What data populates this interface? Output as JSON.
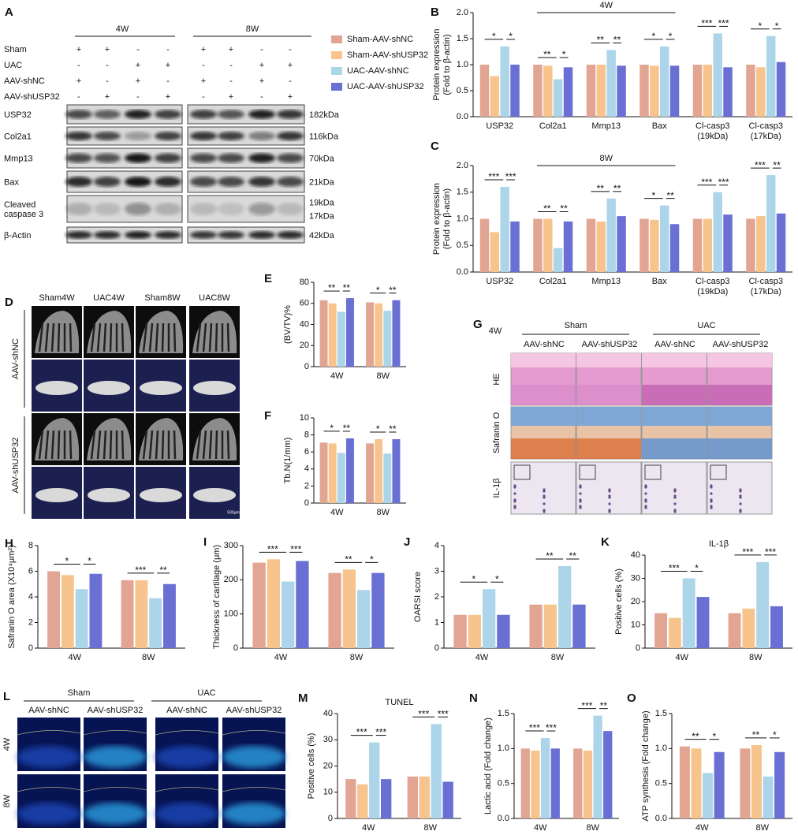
{
  "legend": [
    {
      "name": "Sham-AAV-shNC",
      "color": "#e2a593"
    },
    {
      "name": "Sham-AAV-shUSP32",
      "color": "#f8c48e"
    },
    {
      "name": "UAC-AAV-shNC",
      "color": "#acd5ea"
    },
    {
      "name": "UAC-AAV-shUSP32",
      "color": "#6a6fd4"
    }
  ],
  "blot": {
    "panel": "A",
    "periods": [
      "4W",
      "8W"
    ],
    "conditions": [
      {
        "label": "Sham",
        "marks": [
          "+",
          "+",
          "-",
          "-",
          "+",
          "+",
          "-",
          "-"
        ]
      },
      {
        "label": "UAC",
        "marks": [
          "-",
          "-",
          "+",
          "+",
          "-",
          "-",
          "+",
          "+"
        ]
      },
      {
        "label": "AAV-shNC",
        "marks": [
          "+",
          "-",
          "+",
          "-",
          "+",
          "-",
          "+",
          "-"
        ]
      },
      {
        "label": "AAV-shUSP32",
        "marks": [
          "-",
          "+",
          "-",
          "+",
          "-",
          "+",
          "-",
          "+"
        ]
      }
    ],
    "bands": [
      {
        "label": [
          "USP32"
        ],
        "sizes": [
          "182kDa"
        ]
      },
      {
        "label": [
          "Col2a1"
        ],
        "sizes": [
          "116kDa"
        ]
      },
      {
        "label": [
          "Mmp13"
        ],
        "sizes": [
          "70kDa"
        ]
      },
      {
        "label": [
          "Bax"
        ],
        "sizes": [
          "21kDa"
        ]
      },
      {
        "label": [
          "Cleaved",
          "caspase 3"
        ],
        "sizes": [
          "19kDa",
          "17kDa"
        ]
      },
      {
        "label": [
          "β-Actin"
        ],
        "sizes": [
          "42kDa"
        ]
      }
    ]
  },
  "microct": {
    "panel": "D",
    "columns": [
      "Sham4W",
      "UAC4W",
      "Sham8W",
      "UAC8W"
    ],
    "rows": [
      "AAV-shNC",
      "AAV-shUSP32"
    ],
    "scale": "500μm"
  },
  "histology": {
    "panel": "G",
    "period": "4W",
    "groups": [
      "Sham",
      "UAC"
    ],
    "columns": [
      "AAV-shNC",
      "AAV-shUSP32",
      "AAV-shNC",
      "AAV-shUSP32"
    ],
    "rows": [
      "HE",
      "Safranin O",
      "IL-1β"
    ]
  },
  "fluorescence": {
    "panel": "L",
    "groups": [
      "Sham",
      "UAC"
    ],
    "columns": [
      "AAV-shNC",
      "AAV-shUSP32",
      "AAV-shNC",
      "AAV-shUSP32"
    ],
    "rows": [
      "4W",
      "8W"
    ]
  },
  "chart_data": [
    {
      "type": "bar",
      "panel": "B",
      "header": "4W",
      "ylabel": [
        "Protein expression",
        "(Fold to β-actin)"
      ],
      "categories": [
        [
          "USP32"
        ],
        [
          "Col2a1"
        ],
        [
          "Mmp13"
        ],
        [
          "Bax"
        ],
        [
          "Cl-casp3",
          "(19kDa)"
        ],
        [
          "Cl-casp3",
          "(17kDa)"
        ]
      ],
      "series": [
        {
          "values": [
            1.0,
            1.0,
            1.0,
            1.0,
            1.0,
            1.0
          ]
        },
        {
          "values": [
            0.78,
            0.98,
            1.0,
            0.98,
            1.0,
            0.95
          ]
        },
        {
          "values": [
            1.35,
            0.72,
            1.28,
            1.35,
            1.6,
            1.55
          ]
        },
        {
          "values": [
            1.0,
            0.95,
            0.98,
            0.98,
            0.95,
            1.05
          ]
        }
      ],
      "ylim": [
        0,
        2
      ],
      "yticks": [
        {
          "value": 0,
          "label": "0.0"
        },
        {
          "value": 0.5,
          "label": "0.5"
        },
        {
          "value": 1,
          "label": "1.0"
        },
        {
          "value": 1.5,
          "label": "1.5"
        },
        {
          "value": 2,
          "label": "2.0"
        }
      ],
      "annotations": [
        {
          "text": "*",
          "category": 0,
          "from": 0,
          "to": 2
        },
        {
          "text": "*",
          "category": 0,
          "from": 2,
          "to": 3
        },
        {
          "text": "**",
          "category": 1,
          "from": 0,
          "to": 2
        },
        {
          "text": "*",
          "category": 1,
          "from": 2,
          "to": 3
        },
        {
          "text": "**",
          "category": 2,
          "from": 0,
          "to": 2
        },
        {
          "text": "**",
          "category": 2,
          "from": 2,
          "to": 3
        },
        {
          "text": "*",
          "category": 3,
          "from": 0,
          "to": 2
        },
        {
          "text": "*",
          "category": 3,
          "from": 2,
          "to": 3
        },
        {
          "text": "***",
          "category": 4,
          "from": 0,
          "to": 2
        },
        {
          "text": "***",
          "category": 4,
          "from": 2,
          "to": 3
        },
        {
          "text": "*",
          "category": 5,
          "from": 0,
          "to": 2
        },
        {
          "text": "*",
          "category": 5,
          "from": 2,
          "to": 3
        }
      ]
    },
    {
      "type": "bar",
      "panel": "C",
      "header": "8W",
      "ylabel": [
        "Protein expression",
        "(Fold to β-actin)"
      ],
      "categories": [
        [
          "USP32"
        ],
        [
          "Col2a1"
        ],
        [
          "Mmp13"
        ],
        [
          "Bax"
        ],
        [
          "Cl-casp3",
          "(19kDa)"
        ],
        [
          "Cl-casp3",
          "(17kDa)"
        ]
      ],
      "series": [
        {
          "values": [
            1.0,
            1.0,
            1.0,
            1.0,
            1.0,
            1.0
          ]
        },
        {
          "values": [
            0.75,
            1.0,
            0.95,
            0.98,
            1.0,
            1.05
          ]
        },
        {
          "values": [
            1.6,
            0.45,
            1.38,
            1.25,
            1.5,
            1.82
          ]
        },
        {
          "values": [
            0.95,
            0.95,
            1.05,
            0.9,
            1.08,
            1.1
          ]
        }
      ],
      "ylim": [
        0,
        2
      ],
      "yticks": [
        {
          "value": 0,
          "label": "0.0"
        },
        {
          "value": 0.5,
          "label": "0.5"
        },
        {
          "value": 1,
          "label": "1.0"
        },
        {
          "value": 1.5,
          "label": "1.5"
        },
        {
          "value": 2,
          "label": "2.0"
        }
      ],
      "annotations": [
        {
          "text": "***",
          "category": 0,
          "from": 0,
          "to": 2
        },
        {
          "text": "***",
          "category": 0,
          "from": 2,
          "to": 3
        },
        {
          "text": "**",
          "category": 1,
          "from": 0,
          "to": 2
        },
        {
          "text": "**",
          "category": 1,
          "from": 2,
          "to": 3
        },
        {
          "text": "**",
          "category": 2,
          "from": 0,
          "to": 2
        },
        {
          "text": "**",
          "category": 2,
          "from": 2,
          "to": 3
        },
        {
          "text": "*",
          "category": 3,
          "from": 0,
          "to": 2
        },
        {
          "text": "**",
          "category": 3,
          "from": 2,
          "to": 3
        },
        {
          "text": "***",
          "category": 4,
          "from": 0,
          "to": 2
        },
        {
          "text": "***",
          "category": 4,
          "from": 2,
          "to": 3
        },
        {
          "text": "***",
          "category": 5,
          "from": 0,
          "to": 2
        },
        {
          "text": "**",
          "category": 5,
          "from": 2,
          "to": 3
        }
      ]
    },
    {
      "type": "bar",
      "panel": "E",
      "ylabel": [
        "(BV/TV)%"
      ],
      "categories": [
        [
          "4W"
        ],
        [
          "8W"
        ]
      ],
      "series": [
        {
          "values": [
            63,
            61
          ]
        },
        {
          "values": [
            60,
            60
          ]
        },
        {
          "values": [
            52,
            53
          ]
        },
        {
          "values": [
            65,
            63
          ]
        }
      ],
      "ylim": [
        0,
        80
      ],
      "yticks": [
        0,
        20,
        40,
        60,
        80
      ],
      "annotations": [
        {
          "text": "**",
          "category": 0,
          "from": 0,
          "to": 2
        },
        {
          "text": "**",
          "category": 0,
          "from": 2,
          "to": 3
        },
        {
          "text": "*",
          "category": 1,
          "from": 0,
          "to": 2
        },
        {
          "text": "**",
          "category": 1,
          "from": 2,
          "to": 3
        }
      ]
    },
    {
      "type": "bar",
      "panel": "F",
      "ylabel": [
        "Tb.N(1/mm)"
      ],
      "categories": [
        [
          "4W"
        ],
        [
          "8W"
        ]
      ],
      "series": [
        {
          "values": [
            7.1,
            7.0
          ]
        },
        {
          "values": [
            7.0,
            7.5
          ]
        },
        {
          "values": [
            5.9,
            5.8
          ]
        },
        {
          "values": [
            7.6,
            7.5
          ]
        }
      ],
      "ylim": [
        0,
        10
      ],
      "yticks": [
        0,
        2,
        4,
        6,
        8,
        10
      ],
      "annotations": [
        {
          "text": "*",
          "category": 0,
          "from": 0,
          "to": 2
        },
        {
          "text": "**",
          "category": 0,
          "from": 2,
          "to": 3
        },
        {
          "text": "*",
          "category": 1,
          "from": 0,
          "to": 2
        },
        {
          "text": "**",
          "category": 1,
          "from": 2,
          "to": 3
        }
      ]
    },
    {
      "type": "bar",
      "panel": "H",
      "ylabel": [
        "Safranin O area (X10⁴μm²)"
      ],
      "categories": [
        [
          "4W"
        ],
        [
          "8W"
        ]
      ],
      "series": [
        {
          "values": [
            6.0,
            5.3
          ]
        },
        {
          "values": [
            5.7,
            5.3
          ]
        },
        {
          "values": [
            4.6,
            3.9
          ]
        },
        {
          "values": [
            5.8,
            5.0
          ]
        }
      ],
      "ylim": [
        0,
        8
      ],
      "yticks": [
        0,
        2,
        4,
        6,
        8
      ],
      "annotations": [
        {
          "text": "*",
          "category": 0,
          "from": 0,
          "to": 2
        },
        {
          "text": "*",
          "category": 0,
          "from": 2,
          "to": 3
        },
        {
          "text": "***",
          "category": 1,
          "from": 0,
          "to": 2
        },
        {
          "text": "**",
          "category": 1,
          "from": 2,
          "to": 3
        }
      ]
    },
    {
      "type": "bar",
      "panel": "I",
      "ylabel": [
        "Thickness of cartilage (μm)"
      ],
      "categories": [
        [
          "4W"
        ],
        [
          "8W"
        ]
      ],
      "series": [
        {
          "values": [
            250,
            220
          ]
        },
        {
          "values": [
            260,
            230
          ]
        },
        {
          "values": [
            195,
            170
          ]
        },
        {
          "values": [
            255,
            220
          ]
        }
      ],
      "ylim": [
        0,
        300
      ],
      "yticks": [
        0,
        100,
        200,
        300
      ],
      "annotations": [
        {
          "text": "***",
          "category": 0,
          "from": 0,
          "to": 2
        },
        {
          "text": "***",
          "category": 0,
          "from": 2,
          "to": 3
        },
        {
          "text": "**",
          "category": 1,
          "from": 0,
          "to": 2
        },
        {
          "text": "*",
          "category": 1,
          "from": 2,
          "to": 3
        }
      ]
    },
    {
      "type": "bar",
      "panel": "J",
      "ylabel": [
        "OARSI score"
      ],
      "categories": [
        [
          "4W"
        ],
        [
          "8W"
        ]
      ],
      "series": [
        {
          "values": [
            1.3,
            1.7
          ]
        },
        {
          "values": [
            1.3,
            1.7
          ]
        },
        {
          "values": [
            2.3,
            3.2
          ]
        },
        {
          "values": [
            1.3,
            1.7
          ]
        }
      ],
      "ylim": [
        0,
        4
      ],
      "yticks": [
        0,
        1,
        2,
        3,
        4
      ],
      "annotations": [
        {
          "text": "*",
          "category": 0,
          "from": 0,
          "to": 2
        },
        {
          "text": "*",
          "category": 0,
          "from": 2,
          "to": 3
        },
        {
          "text": "**",
          "category": 1,
          "from": 0,
          "to": 2
        },
        {
          "text": "**",
          "category": 1,
          "from": 2,
          "to": 3
        }
      ]
    },
    {
      "type": "bar",
      "panel": "K",
      "title": "IL-1β",
      "ylabel": [
        "Positive cells (%)"
      ],
      "categories": [
        [
          "4W"
        ],
        [
          "8W"
        ]
      ],
      "series": [
        {
          "values": [
            15,
            15
          ]
        },
        {
          "values": [
            13,
            17
          ]
        },
        {
          "values": [
            30,
            37
          ]
        },
        {
          "values": [
            22,
            18
          ]
        }
      ],
      "ylim": [
        0,
        40
      ],
      "yticks": [
        0,
        10,
        20,
        30,
        40
      ],
      "annotations": [
        {
          "text": "***",
          "category": 0,
          "from": 0,
          "to": 2
        },
        {
          "text": "*",
          "category": 0,
          "from": 2,
          "to": 3
        },
        {
          "text": "***",
          "category": 1,
          "from": 0,
          "to": 2
        },
        {
          "text": "***",
          "category": 1,
          "from": 2,
          "to": 3
        }
      ]
    },
    {
      "type": "bar",
      "panel": "M",
      "title": "TUNEL",
      "ylabel": [
        "Positive cells (%)"
      ],
      "categories": [
        [
          "4W"
        ],
        [
          "8W"
        ]
      ],
      "series": [
        {
          "values": [
            15,
            16
          ]
        },
        {
          "values": [
            13,
            16
          ]
        },
        {
          "values": [
            29,
            36
          ]
        },
        {
          "values": [
            15,
            14
          ]
        }
      ],
      "ylim": [
        0,
        40
      ],
      "yticks": [
        0,
        10,
        20,
        30,
        40
      ],
      "annotations": [
        {
          "text": "***",
          "category": 0,
          "from": 0,
          "to": 2
        },
        {
          "text": "***",
          "category": 0,
          "from": 2,
          "to": 3
        },
        {
          "text": "***",
          "category": 1,
          "from": 0,
          "to": 2
        },
        {
          "text": "***",
          "category": 1,
          "from": 2,
          "to": 3
        }
      ]
    },
    {
      "type": "bar",
      "panel": "N",
      "ylabel": [
        "Lactic acid (Fold change)"
      ],
      "categories": [
        [
          "4W"
        ],
        [
          "8W"
        ]
      ],
      "series": [
        {
          "values": [
            1.0,
            1.0
          ]
        },
        {
          "values": [
            0.97,
            0.97
          ]
        },
        {
          "values": [
            1.15,
            1.47
          ]
        },
        {
          "values": [
            1.0,
            1.25
          ]
        }
      ],
      "ylim": [
        0,
        1.5
      ],
      "yticks": [
        {
          "value": 0,
          "label": "0.0"
        },
        {
          "value": 0.5,
          "label": "0.5"
        },
        {
          "value": 1,
          "label": "1.0"
        },
        {
          "value": 1.5,
          "label": "1.5"
        }
      ],
      "annotations": [
        {
          "text": "***",
          "category": 0,
          "from": 0,
          "to": 2
        },
        {
          "text": "***",
          "category": 0,
          "from": 2,
          "to": 3
        },
        {
          "text": "***",
          "category": 1,
          "from": 0,
          "to": 2
        },
        {
          "text": "**",
          "category": 1,
          "from": 2,
          "to": 3
        }
      ]
    },
    {
      "type": "bar",
      "panel": "O",
      "ylabel": [
        "ATP synthesis (Fold change)"
      ],
      "categories": [
        [
          "4W"
        ],
        [
          "8W"
        ]
      ],
      "series": [
        {
          "values": [
            1.03,
            1.0
          ]
        },
        {
          "values": [
            1.0,
            1.05
          ]
        },
        {
          "values": [
            0.65,
            0.6
          ]
        },
        {
          "values": [
            0.95,
            0.95
          ]
        }
      ],
      "ylim": [
        0,
        1.5
      ],
      "yticks": [
        {
          "value": 0,
          "label": "0.0"
        },
        {
          "value": 0.5,
          "label": "0.5"
        },
        {
          "value": 1,
          "label": "1.0"
        },
        {
          "value": 1.5,
          "label": "1.5"
        }
      ],
      "annotations": [
        {
          "text": "**",
          "category": 0,
          "from": 0,
          "to": 2
        },
        {
          "text": "*",
          "category": 0,
          "from": 2,
          "to": 3
        },
        {
          "text": "**",
          "category": 1,
          "from": 0,
          "to": 2
        },
        {
          "text": "*",
          "category": 1,
          "from": 2,
          "to": 3
        }
      ]
    }
  ]
}
